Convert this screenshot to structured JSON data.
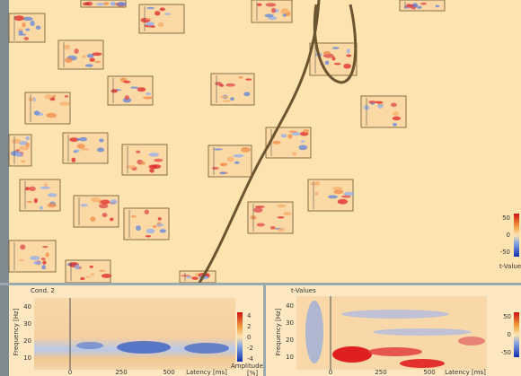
{
  "topo_view": {
    "colorbar_ticks": [
      "50",
      "0",
      "-50"
    ],
    "colorbar_label": "t-Values"
  },
  "cond_panel": {
    "title": "Cond. 2",
    "y_label": "Frequency [Hz]",
    "y_ticks": [
      "40",
      "30",
      "20",
      "10"
    ],
    "x_ticks": [
      "0",
      "250",
      "500"
    ],
    "x_label": "Latency [ms]",
    "colorbar_ticks": [
      "4",
      "2",
      "0",
      "-2",
      "-4"
    ],
    "colorbar_label": "Amplitude",
    "unit": "[%]"
  },
  "tvalue_panel": {
    "title": "t-Values",
    "y_label": "Frequency [Hz]",
    "y_ticks": [
      "40",
      "30",
      "20",
      "10"
    ],
    "x_ticks": [
      "0",
      "250",
      "500"
    ],
    "x_label": "Latency [ms]",
    "colorbar_ticks": [
      "50",
      "0",
      "-50"
    ]
  }
}
